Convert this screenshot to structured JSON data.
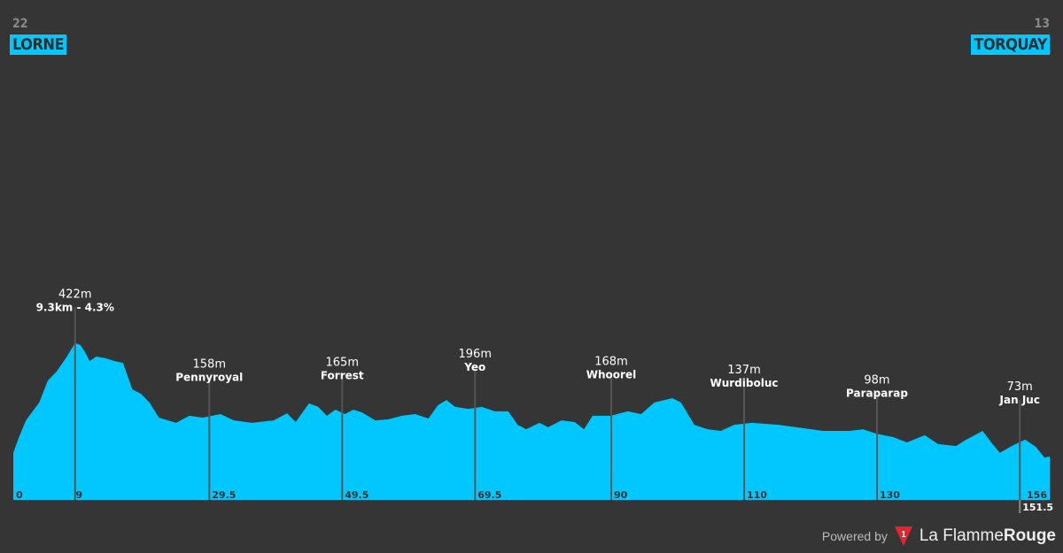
{
  "start": {
    "number": "22",
    "name": "LORNE"
  },
  "finish": {
    "number": "13",
    "name": "TORQUAY"
  },
  "colors": {
    "profile": "#00c8ff",
    "background": "#353535",
    "logo": "#e8222f"
  },
  "footer": {
    "powered": "Powered by",
    "brand_a": "La Flamme",
    "brand_b": "Rouge",
    "logo_icon": "flame-rouge-triangle-icon",
    "logo_text": "1"
  },
  "chart_data": {
    "type": "area",
    "xlabel": "",
    "ylabel": "",
    "xlim": [
      0,
      156
    ],
    "grid": false,
    "profile": [
      [
        0,
        23
      ],
      [
        0.8,
        77
      ],
      [
        1.9,
        141
      ],
      [
        3.9,
        206
      ],
      [
        5.2,
        286
      ],
      [
        6.5,
        318
      ],
      [
        7.9,
        367
      ],
      [
        9.3,
        422
      ],
      [
        10.1,
        415
      ],
      [
        10.8,
        389
      ],
      [
        11.5,
        357
      ],
      [
        12.5,
        373
      ],
      [
        13.9,
        367
      ],
      [
        15.2,
        357
      ],
      [
        16.5,
        350
      ],
      [
        17.9,
        254
      ],
      [
        19.2,
        238
      ],
      [
        20.5,
        206
      ],
      [
        21.9,
        151
      ],
      [
        24.5,
        132
      ],
      [
        26.5,
        158
      ],
      [
        28.5,
        151
      ],
      [
        31.2,
        164
      ],
      [
        33.2,
        141
      ],
      [
        35.9,
        132
      ],
      [
        39.2,
        141
      ],
      [
        41.2,
        167
      ],
      [
        42.5,
        135
      ],
      [
        44.5,
        203
      ],
      [
        45.9,
        190
      ],
      [
        47.2,
        158
      ],
      [
        48.5,
        180
      ],
      [
        49.9,
        164
      ],
      [
        51.2,
        180
      ],
      [
        52.5,
        170
      ],
      [
        54.5,
        141
      ],
      [
        56.5,
        145
      ],
      [
        58.5,
        158
      ],
      [
        60.5,
        164
      ],
      [
        62.5,
        148
      ],
      [
        63.9,
        196
      ],
      [
        65.2,
        215
      ],
      [
        66.5,
        190
      ],
      [
        68.5,
        183
      ],
      [
        70.5,
        190
      ],
      [
        72.5,
        174
      ],
      [
        74.5,
        174
      ],
      [
        75.9,
        125
      ],
      [
        77.2,
        109
      ],
      [
        79.2,
        132
      ],
      [
        80.5,
        116
      ],
      [
        82.5,
        141
      ],
      [
        84.5,
        135
      ],
      [
        85.9,
        109
      ],
      [
        87.2,
        158
      ],
      [
        89.9,
        158
      ],
      [
        92.5,
        174
      ],
      [
        94.5,
        164
      ],
      [
        96.5,
        206
      ],
      [
        99.2,
        222
      ],
      [
        100.5,
        206
      ],
      [
        102.5,
        125
      ],
      [
        104.5,
        109
      ],
      [
        106.5,
        103
      ],
      [
        108.5,
        125
      ],
      [
        111.2,
        132
      ],
      [
        115.2,
        125
      ],
      [
        117.9,
        116
      ],
      [
        121.9,
        103
      ],
      [
        125.9,
        103
      ],
      [
        127.9,
        109
      ],
      [
        129.9,
        93
      ],
      [
        132.5,
        80
      ],
      [
        134.5,
        61
      ],
      [
        137.2,
        87
      ],
      [
        139.2,
        55
      ],
      [
        141.9,
        48
      ],
      [
        143.2,
        68
      ],
      [
        145.9,
        103
      ],
      [
        147.2,
        61
      ],
      [
        148.5,
        23
      ],
      [
        150.5,
        51
      ],
      [
        152.3,
        71
      ],
      [
        153.9,
        45
      ],
      [
        155.2,
        6
      ],
      [
        156,
        10
      ]
    ],
    "markers": [
      {
        "km": 9.3,
        "elevation": "422m",
        "elev": 422,
        "name": "9.3km - 4.3%"
      },
      {
        "km": 29.5,
        "elevation": "158m",
        "elev": 158,
        "name": "Pennyroyal"
      },
      {
        "km": 49.5,
        "elevation": "165m",
        "elev": 165,
        "name": "Forrest"
      },
      {
        "km": 69.5,
        "elevation": "196m",
        "elev": 196,
        "name": "Yeo"
      },
      {
        "km": 90,
        "elevation": "168m",
        "elev": 168,
        "name": "Whoorel"
      },
      {
        "km": 110,
        "elevation": "137m",
        "elev": 137,
        "name": "Wurdiboluc"
      },
      {
        "km": 130,
        "elevation": "98m",
        "elev": 98,
        "name": "Paraparap"
      },
      {
        "km": 151.5,
        "elevation": "73m",
        "elev": 73,
        "name": "Jan Juc"
      }
    ],
    "km_labels": [
      {
        "km": 0,
        "label": "0"
      },
      {
        "km": 9,
        "label": "9"
      },
      {
        "km": 29.5,
        "label": "29.5"
      },
      {
        "km": 49.5,
        "label": "49.5"
      },
      {
        "km": 69.5,
        "label": "69.5"
      },
      {
        "km": 90,
        "label": "90"
      },
      {
        "km": 110,
        "label": "110"
      },
      {
        "km": 130,
        "label": "130"
      },
      {
        "km": 156,
        "label": "156"
      },
      {
        "km": 151.5,
        "label": "151.5"
      }
    ]
  }
}
